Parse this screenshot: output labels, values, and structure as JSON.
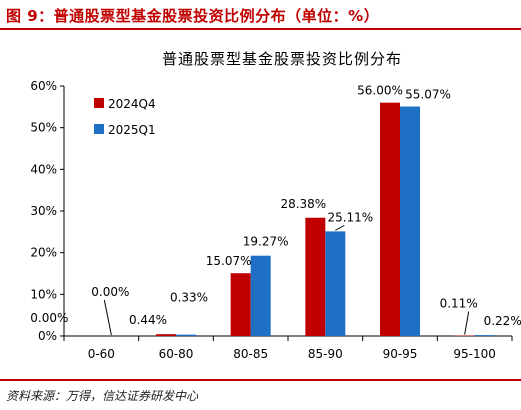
{
  "figure": {
    "title": "图 9：普通股票型基金股票投资比例分布（单位：%）",
    "source": "资料来源：万得，信达证券研发中心"
  },
  "chart_data": {
    "type": "bar",
    "title": "普通股票型基金股票投资比例分布",
    "xlabel": "",
    "ylabel": "",
    "categories": [
      "0-60",
      "60-80",
      "80-85",
      "85-90",
      "90-95",
      "95-100"
    ],
    "series": [
      {
        "name": "2024Q4",
        "values": [
          0.0,
          0.44,
          15.07,
          28.38,
          56.0,
          0.11
        ],
        "color": "#c00000"
      },
      {
        "name": "2025Q1",
        "values": [
          0.0,
          0.33,
          19.27,
          25.11,
          55.07,
          0.22
        ],
        "color": "#1f6fc5"
      }
    ],
    "data_labels": [
      [
        "0.00%",
        "0.44%",
        "15.07%",
        "28.38%",
        "56.00%",
        "0.11%"
      ],
      [
        "0.00%",
        "0.33%",
        "19.27%",
        "25.11%",
        "55.07%",
        "0.22%"
      ]
    ],
    "ylim": [
      0,
      60
    ],
    "yticks": [
      "0%",
      "10%",
      "20%",
      "30%",
      "40%",
      "50%",
      "60%"
    ],
    "grid": false,
    "legend": "top-left"
  }
}
